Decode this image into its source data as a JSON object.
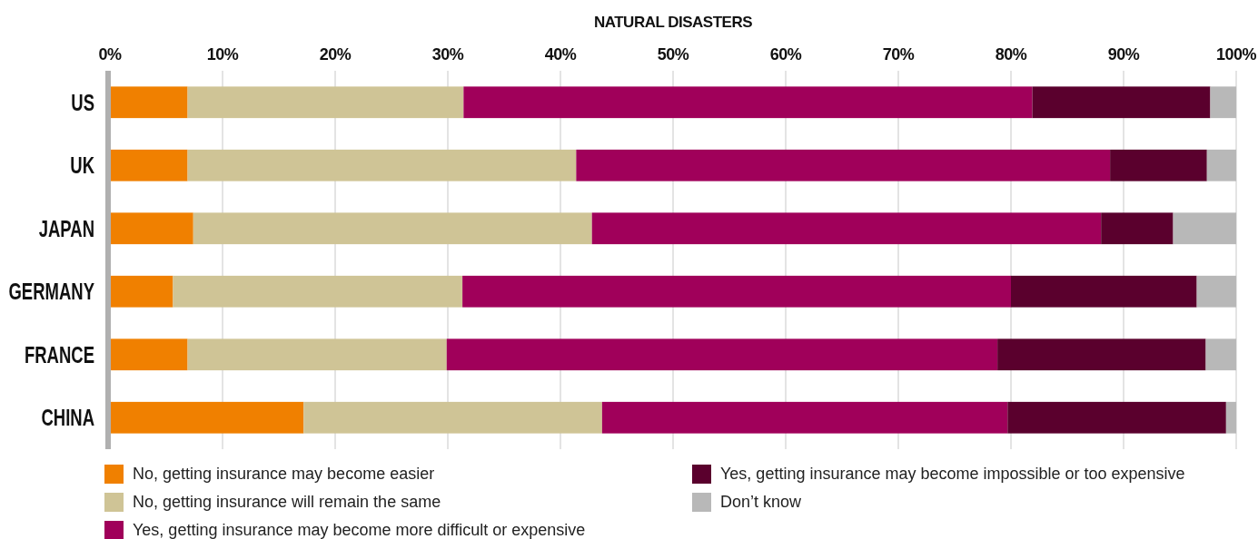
{
  "chart_data": {
    "type": "bar",
    "orientation": "horizontal",
    "stacked": true,
    "title": "NATURAL DISASTERS",
    "categories": [
      "US",
      "UK",
      "JAPAN",
      "GERMANY",
      "FRANCE",
      "CHINA"
    ],
    "series": [
      {
        "name": "No, getting insurance may become easier",
        "color": "#f08000",
        "values": [
          6.9,
          6.9,
          7.4,
          5.6,
          6.9,
          17.2
        ]
      },
      {
        "name": "No, getting insurance will remain the same",
        "color": "#cfc496",
        "values": [
          24.5,
          34.5,
          35.4,
          25.7,
          23.0,
          26.5
        ]
      },
      {
        "name": "Yes, getting insurance may become more difficult or expensive",
        "color": "#a0005a",
        "values": [
          50.5,
          47.4,
          45.2,
          48.7,
          48.9,
          36.0
        ]
      },
      {
        "name": "Yes, getting insurance may become impossible or too expensive",
        "color": "#5a002d",
        "values": [
          15.8,
          8.6,
          6.4,
          16.5,
          18.5,
          19.4
        ]
      },
      {
        "name": "Don’t know",
        "color": "#b8b8b8",
        "values": [
          2.3,
          2.6,
          5.6,
          3.5,
          2.7,
          0.9
        ]
      }
    ],
    "xlim": [
      0,
      100
    ],
    "xticks": [
      {
        "value": 0,
        "label": "0%"
      },
      {
        "value": 10,
        "label": "10%"
      },
      {
        "value": 20,
        "label": "20%"
      },
      {
        "value": 30,
        "label": "30%"
      },
      {
        "value": 40,
        "label": "40%"
      },
      {
        "value": 50,
        "label": "50%"
      },
      {
        "value": 60,
        "label": "60%"
      },
      {
        "value": 70,
        "label": "70%"
      },
      {
        "value": 80,
        "label": "80%"
      },
      {
        "value": 90,
        "label": "90%"
      },
      {
        "value": 100,
        "label": "100%"
      }
    ],
    "grid": "x",
    "legend": "bottom"
  }
}
